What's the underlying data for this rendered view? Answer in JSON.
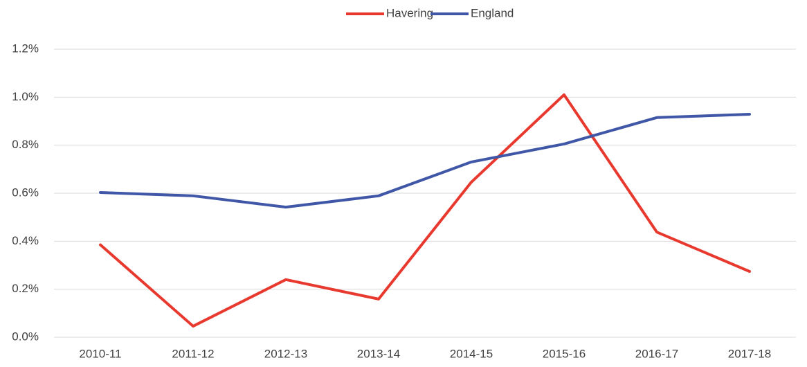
{
  "chart_data": {
    "type": "line",
    "categories": [
      "2010-11",
      "2011-12",
      "2012-13",
      "2013-14",
      "2014-15",
      "2015-16",
      "2016-17",
      "2017-18"
    ],
    "series": [
      {
        "name": "Havering",
        "color": "#e8392f",
        "values": [
          0.385,
          0.046,
          0.24,
          0.159,
          0.646,
          1.01,
          0.438,
          0.274
        ]
      },
      {
        "name": "England",
        "color": "#3f57a6",
        "values": [
          0.603,
          0.589,
          0.542,
          0.589,
          0.73,
          0.805,
          0.915,
          0.929
        ]
      }
    ],
    "ylim": [
      0,
      1.2
    ],
    "yticks": [
      {
        "value": 0,
        "label": "0.0%"
      },
      {
        "value": 0.2,
        "label": "0.2%"
      },
      {
        "value": 0.4,
        "label": "0.4%"
      },
      {
        "value": 0.6,
        "label": "0.6%"
      },
      {
        "value": 0.8,
        "label": "0.8%"
      },
      {
        "value": 1.0,
        "label": "1.0%"
      },
      {
        "value": 1.2,
        "label": "1.2%"
      }
    ],
    "grid": true,
    "legend": "top"
  }
}
